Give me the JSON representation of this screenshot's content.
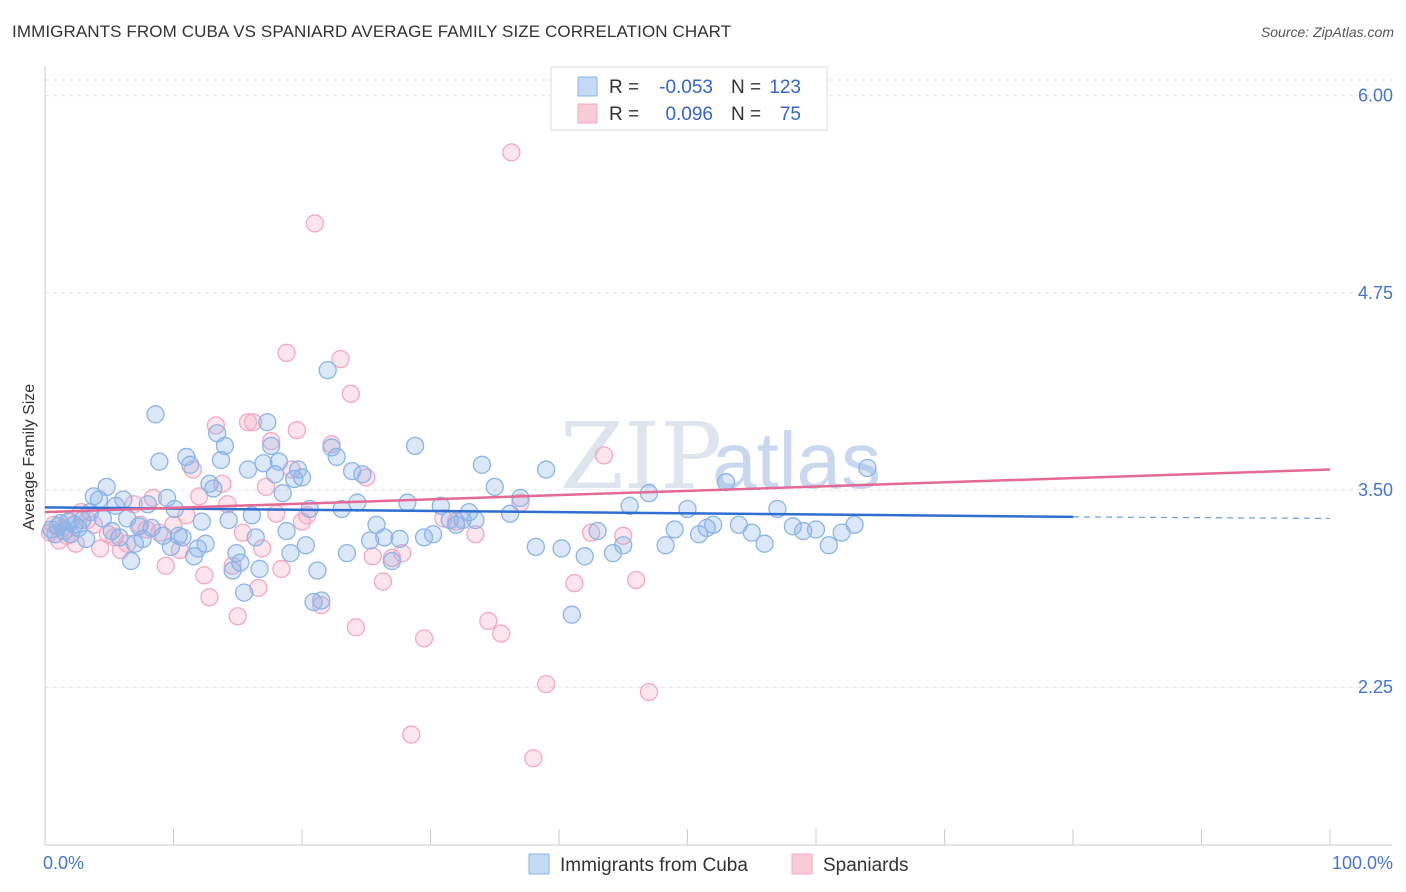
{
  "title": "IMMIGRANTS FROM CUBA VS SPANIARD AVERAGE FAMILY SIZE CORRELATION CHART",
  "source": "Source: ZipAtlas.com",
  "watermark": "ZIPatlas",
  "colors": {
    "blue": "#8ab4e8",
    "blue_line": "#2f6fd1",
    "pink": "#f4a8c0",
    "pink_line": "#e36a94",
    "tick_text": "#4477cc",
    "grid": "#e3e3e3"
  },
  "legend": {
    "r_label": "R =",
    "n_label": "N =",
    "rows": [
      {
        "r": "-0.053",
        "n": "123"
      },
      {
        "r": "0.096",
        "n": "75"
      }
    ]
  },
  "bottom_legend": [
    "Immigrants from Cuba",
    "Spaniards"
  ],
  "chart_data": {
    "type": "scatter",
    "ylabel": "Average Family Size",
    "xlabel": "",
    "x_tick_labels": [
      "0.0%",
      "100.0%"
    ],
    "y_tick_labels": [
      "2.25",
      "3.50",
      "4.75",
      "6.00"
    ],
    "xlim": [
      0,
      100
    ],
    "ylim": [
      1.25,
      6.15
    ],
    "grid": true,
    "legend_position": "top-center",
    "series": [
      {
        "name": "Immigrants from Cuba",
        "color": "#8ab4e8",
        "trend": {
          "x": [
            0,
            80,
            100
          ],
          "y": [
            3.39,
            3.33,
            3.32
          ],
          "dashed_from": 80
        },
        "points": [
          [
            0.5,
            3.25
          ],
          [
            0.8,
            3.22
          ],
          [
            1.0,
            3.27
          ],
          [
            1.2,
            3.29
          ],
          [
            1.5,
            3.24
          ],
          [
            1.8,
            3.3
          ],
          [
            2.0,
            3.22
          ],
          [
            2.3,
            3.28
          ],
          [
            2.6,
            3.26
          ],
          [
            2.9,
            3.31
          ],
          [
            3.2,
            3.19
          ],
          [
            3.5,
            3.36
          ],
          [
            3.8,
            3.46
          ],
          [
            4.2,
            3.44
          ],
          [
            4.5,
            3.32
          ],
          [
            4.8,
            3.52
          ],
          [
            5.2,
            3.24
          ],
          [
            5.5,
            3.4
          ],
          [
            5.8,
            3.2
          ],
          [
            6.1,
            3.44
          ],
          [
            6.4,
            3.32
          ],
          [
            6.7,
            3.05
          ],
          [
            7.0,
            3.16
          ],
          [
            7.3,
            3.27
          ],
          [
            7.6,
            3.19
          ],
          [
            8.0,
            3.41
          ],
          [
            8.3,
            3.26
          ],
          [
            8.6,
            3.98
          ],
          [
            8.9,
            3.68
          ],
          [
            9.2,
            3.21
          ],
          [
            9.5,
            3.45
          ],
          [
            9.8,
            3.14
          ],
          [
            10.1,
            3.38
          ],
          [
            10.4,
            3.21
          ],
          [
            10.7,
            3.2
          ],
          [
            11.0,
            3.71
          ],
          [
            11.3,
            3.66
          ],
          [
            11.6,
            3.08
          ],
          [
            11.9,
            3.13
          ],
          [
            12.2,
            3.3
          ],
          [
            12.5,
            3.16
          ],
          [
            12.8,
            3.54
          ],
          [
            13.1,
            3.51
          ],
          [
            13.4,
            3.86
          ],
          [
            13.7,
            3.69
          ],
          [
            14.0,
            3.78
          ],
          [
            14.3,
            3.31
          ],
          [
            14.6,
            2.99
          ],
          [
            14.9,
            3.1
          ],
          [
            15.2,
            3.04
          ],
          [
            15.5,
            2.85
          ],
          [
            15.8,
            3.63
          ],
          [
            16.1,
            3.34
          ],
          [
            16.4,
            3.2
          ],
          [
            16.7,
            3.0
          ],
          [
            17.0,
            3.67
          ],
          [
            17.3,
            3.93
          ],
          [
            17.6,
            3.78
          ],
          [
            17.9,
            3.6
          ],
          [
            18.2,
            3.68
          ],
          [
            18.5,
            3.48
          ],
          [
            18.8,
            3.24
          ],
          [
            19.1,
            3.1
          ],
          [
            19.4,
            3.57
          ],
          [
            19.7,
            3.63
          ],
          [
            20.0,
            3.58
          ],
          [
            20.3,
            3.15
          ],
          [
            20.6,
            3.38
          ],
          [
            20.9,
            2.79
          ],
          [
            21.2,
            2.99
          ],
          [
            21.5,
            2.8
          ],
          [
            22.0,
            4.26
          ],
          [
            22.3,
            3.77
          ],
          [
            22.7,
            3.71
          ],
          [
            23.1,
            3.38
          ],
          [
            23.5,
            3.1
          ],
          [
            23.9,
            3.62
          ],
          [
            24.3,
            3.42
          ],
          [
            24.7,
            3.6
          ],
          [
            25.3,
            3.18
          ],
          [
            25.8,
            3.28
          ],
          [
            26.4,
            3.2
          ],
          [
            27.0,
            3.05
          ],
          [
            27.6,
            3.19
          ],
          [
            28.2,
            3.42
          ],
          [
            28.8,
            3.78
          ],
          [
            29.5,
            3.2
          ],
          [
            30.2,
            3.22
          ],
          [
            30.8,
            3.4
          ],
          [
            31.5,
            3.31
          ],
          [
            32.0,
            3.28
          ],
          [
            32.5,
            3.31
          ],
          [
            33.0,
            3.36
          ],
          [
            33.5,
            3.31
          ],
          [
            34.0,
            3.66
          ],
          [
            35.0,
            3.52
          ],
          [
            36.2,
            3.35
          ],
          [
            37.0,
            3.45
          ],
          [
            38.2,
            3.14
          ],
          [
            39.0,
            3.63
          ],
          [
            40.2,
            3.13
          ],
          [
            41.0,
            2.71
          ],
          [
            42.0,
            3.08
          ],
          [
            43.0,
            3.24
          ],
          [
            44.2,
            3.1
          ],
          [
            45.0,
            3.15
          ],
          [
            45.5,
            3.4
          ],
          [
            47.0,
            3.48
          ],
          [
            48.3,
            3.15
          ],
          [
            49.0,
            3.25
          ],
          [
            50.0,
            3.38
          ],
          [
            50.9,
            3.22
          ],
          [
            51.5,
            3.26
          ],
          [
            52.0,
            3.28
          ],
          [
            53.0,
            3.55
          ],
          [
            54.0,
            3.28
          ],
          [
            55.0,
            3.23
          ],
          [
            56.0,
            3.16
          ],
          [
            57.0,
            3.38
          ],
          [
            58.2,
            3.27
          ],
          [
            59.0,
            3.24
          ],
          [
            60.0,
            3.25
          ],
          [
            61.0,
            3.15
          ],
          [
            62.0,
            3.23
          ],
          [
            63.0,
            3.28
          ],
          [
            64.0,
            3.64
          ]
        ]
      },
      {
        "name": "Spaniards",
        "color": "#f4a8c0",
        "trend": {
          "x": [
            0,
            100
          ],
          "y": [
            3.36,
            3.63
          ]
        },
        "points": [
          [
            0.4,
            3.23
          ],
          [
            0.7,
            3.28
          ],
          [
            1.1,
            3.18
          ],
          [
            1.4,
            3.26
          ],
          [
            1.7,
            3.21
          ],
          [
            2.0,
            3.3
          ],
          [
            2.4,
            3.16
          ],
          [
            2.8,
            3.36
          ],
          [
            3.3,
            3.31
          ],
          [
            3.8,
            3.28
          ],
          [
            4.3,
            3.13
          ],
          [
            4.9,
            3.22
          ],
          [
            5.4,
            3.2
          ],
          [
            5.9,
            3.12
          ],
          [
            6.4,
            3.16
          ],
          [
            6.9,
            3.41
          ],
          [
            7.4,
            3.28
          ],
          [
            7.9,
            3.25
          ],
          [
            8.4,
            3.45
          ],
          [
            8.9,
            3.23
          ],
          [
            9.4,
            3.02
          ],
          [
            10.0,
            3.28
          ],
          [
            10.5,
            3.12
          ],
          [
            11.0,
            3.34
          ],
          [
            11.5,
            3.63
          ],
          [
            12.0,
            3.46
          ],
          [
            12.4,
            2.96
          ],
          [
            12.8,
            2.82
          ],
          [
            13.3,
            3.91
          ],
          [
            13.8,
            3.54
          ],
          [
            14.2,
            3.41
          ],
          [
            14.6,
            3.02
          ],
          [
            15.0,
            2.7
          ],
          [
            15.4,
            3.23
          ],
          [
            15.8,
            3.93
          ],
          [
            16.2,
            3.93
          ],
          [
            16.6,
            2.88
          ],
          [
            16.9,
            3.13
          ],
          [
            17.2,
            3.52
          ],
          [
            17.6,
            3.81
          ],
          [
            18.0,
            3.35
          ],
          [
            18.4,
            3.0
          ],
          [
            18.8,
            4.37
          ],
          [
            19.2,
            3.63
          ],
          [
            19.6,
            3.88
          ],
          [
            20.0,
            3.3
          ],
          [
            20.4,
            3.34
          ],
          [
            21.0,
            5.19
          ],
          [
            21.5,
            2.77
          ],
          [
            22.3,
            3.79
          ],
          [
            23.0,
            4.33
          ],
          [
            23.8,
            4.11
          ],
          [
            24.2,
            2.63
          ],
          [
            25.0,
            3.58
          ],
          [
            25.5,
            3.08
          ],
          [
            26.3,
            2.92
          ],
          [
            27.0,
            3.07
          ],
          [
            27.8,
            3.1
          ],
          [
            28.5,
            1.95
          ],
          [
            29.5,
            2.56
          ],
          [
            31.0,
            3.32
          ],
          [
            32.0,
            3.3
          ],
          [
            33.5,
            3.22
          ],
          [
            34.5,
            2.67
          ],
          [
            35.5,
            2.59
          ],
          [
            36.3,
            5.64
          ],
          [
            37.0,
            3.42
          ],
          [
            38.0,
            1.8
          ],
          [
            39.0,
            2.27
          ],
          [
            41.2,
            2.91
          ],
          [
            42.5,
            3.23
          ],
          [
            43.5,
            3.72
          ],
          [
            45.0,
            3.21
          ],
          [
            46.0,
            2.93
          ],
          [
            47.0,
            2.22
          ]
        ]
      }
    ]
  }
}
